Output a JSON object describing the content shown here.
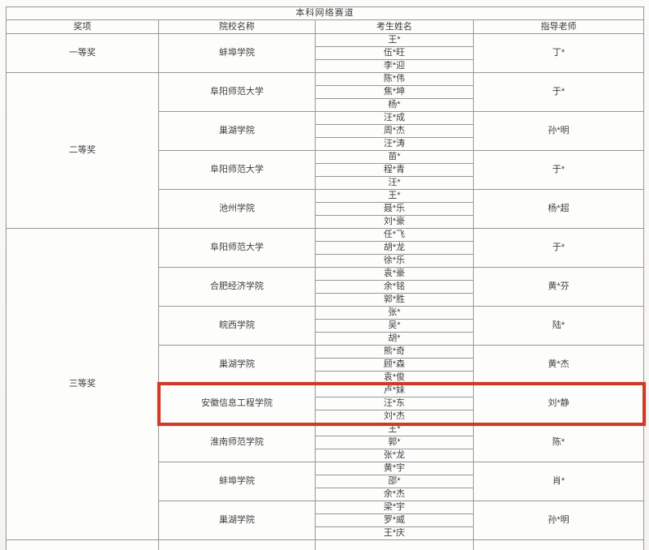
{
  "table": {
    "title": "本科网络赛道",
    "headers": [
      "奖项",
      "院校名称",
      "考生姓名",
      "指导老师"
    ],
    "highlight_color": "#cf3a28",
    "groups": [
      {
        "award": "一等奖",
        "schools": [
          {
            "school": "蚌埠学院",
            "students": [
              "王*",
              "伍*旺",
              "李*迎"
            ],
            "advisor": "丁*",
            "highlighted": false
          }
        ]
      },
      {
        "award": "二等奖",
        "schools": [
          {
            "school": "阜阳师范大学",
            "students": [
              "陈*伟",
              "焦*坤",
              "杨*"
            ],
            "advisor": "于*",
            "highlighted": false
          },
          {
            "school": "巢湖学院",
            "students": [
              "汪*成",
              "周*杰",
              "汪*涛"
            ],
            "advisor": "孙*明",
            "highlighted": false
          },
          {
            "school": "阜阳师范大学",
            "students": [
              "苗*",
              "程*青",
              "汪*"
            ],
            "advisor": "于*",
            "highlighted": false
          },
          {
            "school": "池州学院",
            "students": [
              "王*",
              "聂*乐",
              "刘*豪"
            ],
            "advisor": "杨*超",
            "highlighted": false
          }
        ]
      },
      {
        "award": "三等奖",
        "schools": [
          {
            "school": "阜阳师范大学",
            "students": [
              "任*飞",
              "胡*龙",
              "徐*乐"
            ],
            "advisor": "于*",
            "highlighted": false
          },
          {
            "school": "合肥经济学院",
            "students": [
              "袁*豪",
              "余*铭",
              "郭*胜"
            ],
            "advisor": "黄*芬",
            "highlighted": false
          },
          {
            "school": "皖西学院",
            "students": [
              "张*",
              "吴*",
              "胡*"
            ],
            "advisor": "陆*",
            "highlighted": false
          },
          {
            "school": "巢湖学院",
            "students": [
              "熊*奇",
              "顾*森",
              "袁*俊"
            ],
            "advisor": "黄*杰",
            "highlighted": false
          },
          {
            "school": "安徽信息工程学院",
            "students": [
              "卢*妹",
              "汪*东",
              "刘*杰"
            ],
            "advisor": "刘*静",
            "highlighted": true
          },
          {
            "school": "淮南师范学院",
            "students": [
              "王*",
              "郭*",
              "张*龙"
            ],
            "advisor": "陈*",
            "highlighted": false
          },
          {
            "school": "蚌埠学院",
            "students": [
              "黄*宇",
              "邵*",
              "余*杰"
            ],
            "advisor": "肖*",
            "highlighted": false
          },
          {
            "school": "巢湖学院",
            "students": [
              "梁*宇",
              "罗*威",
              "王*庆"
            ],
            "advisor": "孙*明",
            "highlighted": false
          }
        ]
      }
    ]
  }
}
